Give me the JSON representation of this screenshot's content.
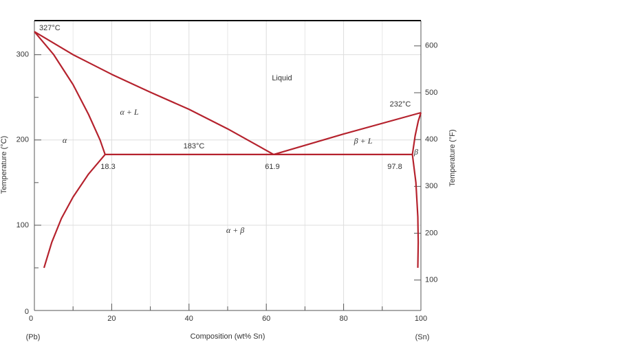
{
  "chart_data": {
    "type": "line",
    "xlabel": "Composition (wt% Sn)",
    "ylabel": "Temperature (°C)",
    "y2label": "Temperature (°F)",
    "xlim": [
      0,
      100
    ],
    "xticks": [
      0,
      20,
      40,
      60,
      80,
      100
    ],
    "xminorticks": [
      10,
      30,
      50,
      70,
      90
    ],
    "ylim": [
      0,
      340
    ],
    "yticks": [
      0,
      100,
      200,
      300
    ],
    "yminorticks": [
      50,
      150,
      250
    ],
    "y2lim": [
      35,
      654
    ],
    "y2ticks": [
      100,
      200,
      300,
      400,
      500,
      600
    ],
    "grid": true,
    "color": "#b5222d",
    "curves": [
      {
        "x": [
          0,
          10,
          20,
          30,
          40,
          50,
          61.9
        ],
        "y": [
          327,
          300,
          277,
          256,
          236,
          213,
          183
        ]
      },
      {
        "x": [
          61.9,
          80,
          100
        ],
        "y": [
          183,
          207,
          232
        ]
      },
      {
        "x": [
          0,
          5,
          10,
          14,
          17,
          18.3
        ],
        "y": [
          327,
          300,
          265,
          230,
          200,
          183
        ]
      },
      {
        "x": [
          18.3,
          14,
          10,
          7,
          4.5,
          2.5
        ],
        "y": [
          183,
          160,
          133,
          108,
          80,
          50
        ]
      },
      {
        "x": [
          18.3,
          61.9,
          97.8
        ],
        "y": [
          183,
          183,
          183
        ]
      },
      {
        "x": [
          97.8,
          98.5,
          99.3,
          100
        ],
        "y": [
          183,
          205,
          222,
          232
        ]
      },
      {
        "x": [
          97.8,
          98.7,
          99.2,
          99.3,
          99.2
        ],
        "y": [
          183,
          150,
          110,
          80,
          50
        ]
      }
    ],
    "annotations": [
      "327°C",
      "Liquid",
      "α + L",
      "α",
      "183°C",
      "232°C",
      "β + L",
      "β",
      "18.3",
      "61.9",
      "97.8",
      "α + β",
      "(Pb)",
      "(Sn)"
    ]
  }
}
